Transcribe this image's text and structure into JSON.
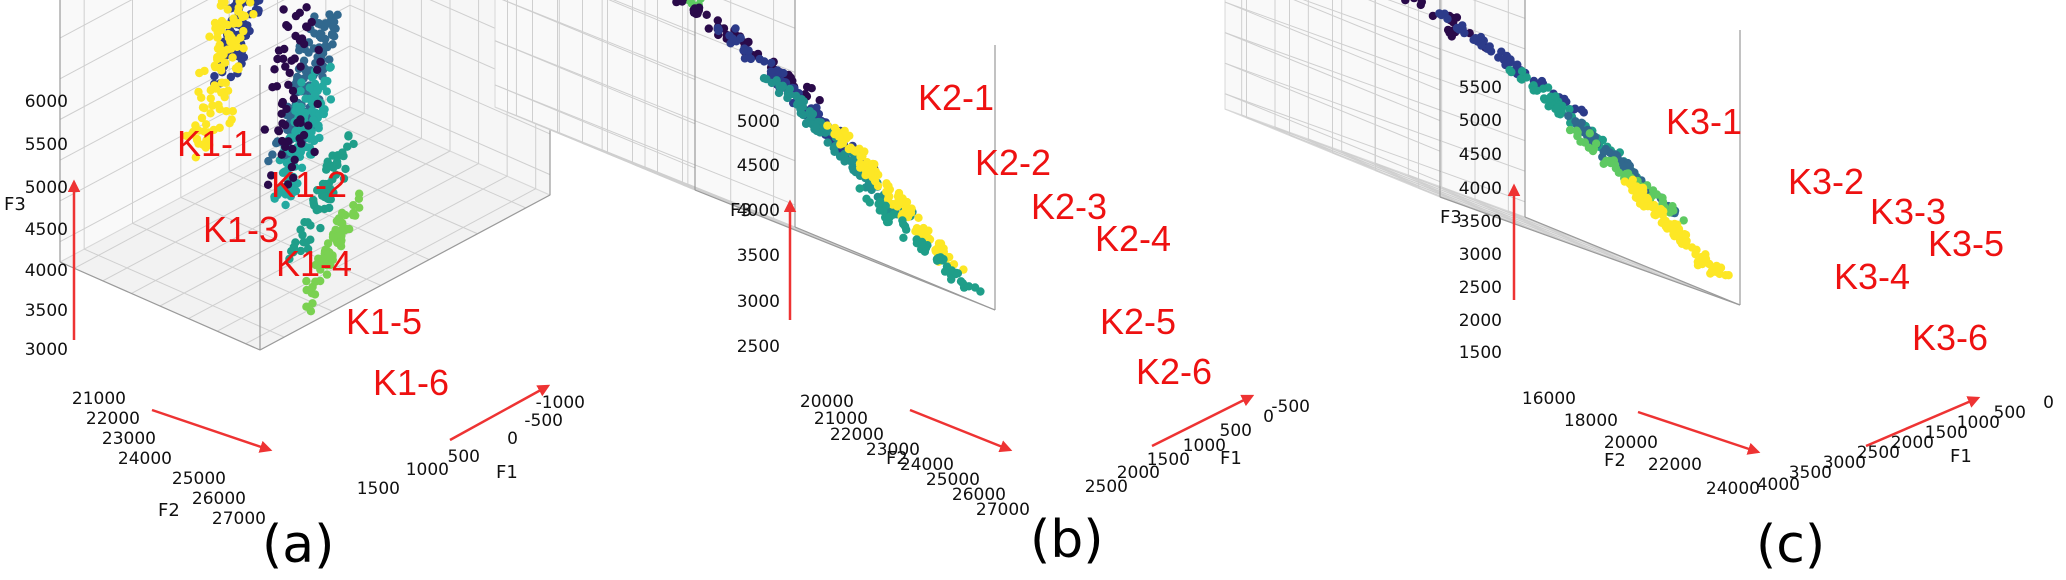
{
  "chart_data": [
    {
      "type": "scatter",
      "caption": "(a)",
      "xlabel": "F1",
      "ylabel": "F2",
      "zlabel": "F3",
      "x_ticks": [
        "-1000",
        "-500",
        "0",
        "500",
        "1000",
        "1500"
      ],
      "y_ticks": [
        "21000",
        "22000",
        "23000",
        "24000",
        "25000",
        "26000",
        "27000"
      ],
      "z_ticks": [
        "3000",
        "3500",
        "4000",
        "4500",
        "5000",
        "5500",
        "6000"
      ],
      "xlim": [
        -1250,
        1750
      ],
      "ylim": [
        21000,
        27000
      ],
      "zlim": [
        2800,
        6200
      ],
      "clusters": [
        {
          "label": "K1-1",
          "color": "#2c3b8a",
          "f1": [
            -250,
            1150
          ],
          "f2": [
            21000,
            23000
          ],
          "f3": [
            4700,
            6000
          ],
          "n": 170,
          "spread": 0.1
        },
        {
          "label": "K1-2",
          "color": "#fde725",
          "f1": [
            -850,
            200
          ],
          "f2": [
            22200,
            24200
          ],
          "f3": [
            4500,
            5500
          ],
          "n": 120,
          "spread": 0.12
        },
        {
          "label": "K1-3",
          "color": "#31688e",
          "f1": [
            -150,
            950
          ],
          "f2": [
            22600,
            24600
          ],
          "f3": [
            4000,
            4700
          ],
          "n": 130,
          "spread": 0.1
        },
        {
          "label": "K1-4",
          "color": "#23a9a0",
          "f1": [
            -350,
            650
          ],
          "f2": [
            23300,
            25200
          ],
          "f3": [
            3700,
            4300
          ],
          "n": 110,
          "spread": 0.1
        },
        {
          "label": "K1-5",
          "color": "#1f9e89",
          "f1": [
            -600,
            400
          ],
          "f2": [
            24800,
            26300
          ],
          "f3": [
            3400,
            3900
          ],
          "n": 60,
          "spread": 0.08
        },
        {
          "label": "K1-6",
          "color": "#7ad151",
          "f1": [
            -800,
            250
          ],
          "f2": [
            25600,
            27000
          ],
          "f3": [
            3000,
            3500
          ],
          "n": 70,
          "spread": 0.07
        },
        {
          "label": "",
          "color": "#2a0a4a",
          "f1": [
            -400,
            800
          ],
          "f2": [
            22300,
            25400
          ],
          "f3": [
            3900,
            4900
          ],
          "n": 60,
          "spread": 0.14
        }
      ]
    },
    {
      "type": "scatter",
      "caption": "(b)",
      "xlabel": "F1",
      "ylabel": "F2",
      "zlabel": "F3",
      "x_ticks": [
        "-500",
        "0",
        "500",
        "1000",
        "1500",
        "2000",
        "2500"
      ],
      "y_ticks": [
        "20000",
        "21000",
        "22000",
        "23000",
        "24000",
        "25000",
        "26000",
        "27000"
      ],
      "z_ticks": [
        "2500",
        "3000",
        "3500",
        "4000",
        "4500",
        "5000"
      ],
      "xlim": [
        -750,
        2750
      ],
      "ylim": [
        20000,
        27000
      ],
      "zlim": [
        2200,
        5400
      ],
      "clusters": [
        {
          "label": "K2-1",
          "color": "#5ec962",
          "f1": [
            900,
            2500
          ],
          "f2": [
            20000,
            21800
          ],
          "f3": [
            4400,
            5300
          ],
          "n": 90,
          "spread": 0.1
        },
        {
          "label": "K2-2",
          "color": "#2a0a4a",
          "f1": [
            300,
            1800
          ],
          "f2": [
            21300,
            23500
          ],
          "f3": [
            3900,
            4700
          ],
          "n": 80,
          "spread": 0.12
        },
        {
          "label": "K2-3",
          "color": "#2c3b8a",
          "f1": [
            100,
            1000
          ],
          "f2": [
            22800,
            25000
          ],
          "f3": [
            3300,
            4300
          ],
          "n": 100,
          "spread": 0.09
        },
        {
          "label": "K2-4",
          "color": "#21918c",
          "f1": [
            -100,
            700
          ],
          "f2": [
            23600,
            25800
          ],
          "f3": [
            2900,
            3900
          ],
          "n": 100,
          "spread": 0.09
        },
        {
          "label": "K2-5",
          "color": "#fde725",
          "f1": [
            -400,
            300
          ],
          "f2": [
            24600,
            26600
          ],
          "f3": [
            2500,
            3600
          ],
          "n": 110,
          "spread": 0.08
        },
        {
          "label": "K2-6",
          "color": "#1f9e89",
          "f1": [
            -500,
            200
          ],
          "f2": [
            25200,
            27000
          ],
          "f3": [
            2300,
            3000
          ],
          "n": 50,
          "spread": 0.08
        }
      ]
    },
    {
      "type": "scatter",
      "caption": "(c)",
      "xlabel": "F1",
      "ylabel": "F2",
      "zlabel": "F3",
      "x_ticks": [
        "0",
        "500",
        "1000",
        "1500",
        "2000",
        "2500",
        "3000",
        "3500",
        "4000"
      ],
      "y_ticks": [
        "16000",
        "18000",
        "20000",
        "22000",
        "24000"
      ],
      "z_ticks": [
        "1500",
        "2000",
        "2500",
        "3000",
        "3500",
        "4000",
        "4500",
        "5000",
        "5500"
      ],
      "xlim": [
        -250,
        4250
      ],
      "ylim": [
        15000,
        25000
      ],
      "zlim": [
        1200,
        5800
      ],
      "clusters": [
        {
          "label": "K3-1",
          "color": "#2a0a4a",
          "f1": [
            1800,
            4200
          ],
          "f2": [
            15000,
            19000
          ],
          "f3": [
            3900,
            5500
          ],
          "n": 70,
          "spread": 0.14
        },
        {
          "label": "K3-2",
          "color": "#2c3b8a",
          "f1": [
            800,
            2200
          ],
          "f2": [
            18500,
            21500
          ],
          "f3": [
            3300,
            4200
          ],
          "n": 60,
          "spread": 0.07
        },
        {
          "label": "K3-3",
          "color": "#1f9e89",
          "f1": [
            500,
            1500
          ],
          "f2": [
            20000,
            22500
          ],
          "f3": [
            2700,
            3700
          ],
          "n": 70,
          "spread": 0.08
        },
        {
          "label": "K3-4",
          "color": "#31688e",
          "f1": [
            300,
            1200
          ],
          "f2": [
            21500,
            23500
          ],
          "f3": [
            2300,
            3300
          ],
          "n": 60,
          "spread": 0.07
        },
        {
          "label": "K3-5",
          "color": "#5ec962",
          "f1": [
            200,
            1000
          ],
          "f2": [
            21000,
            24000
          ],
          "f3": [
            2200,
            3100
          ],
          "n": 50,
          "spread": 0.09
        },
        {
          "label": "K3-6",
          "color": "#fde725",
          "f1": [
            0,
            700
          ],
          "f2": [
            22500,
            25000
          ],
          "f3": [
            1500,
            2600
          ],
          "n": 90,
          "spread": 0.07
        }
      ]
    }
  ]
}
